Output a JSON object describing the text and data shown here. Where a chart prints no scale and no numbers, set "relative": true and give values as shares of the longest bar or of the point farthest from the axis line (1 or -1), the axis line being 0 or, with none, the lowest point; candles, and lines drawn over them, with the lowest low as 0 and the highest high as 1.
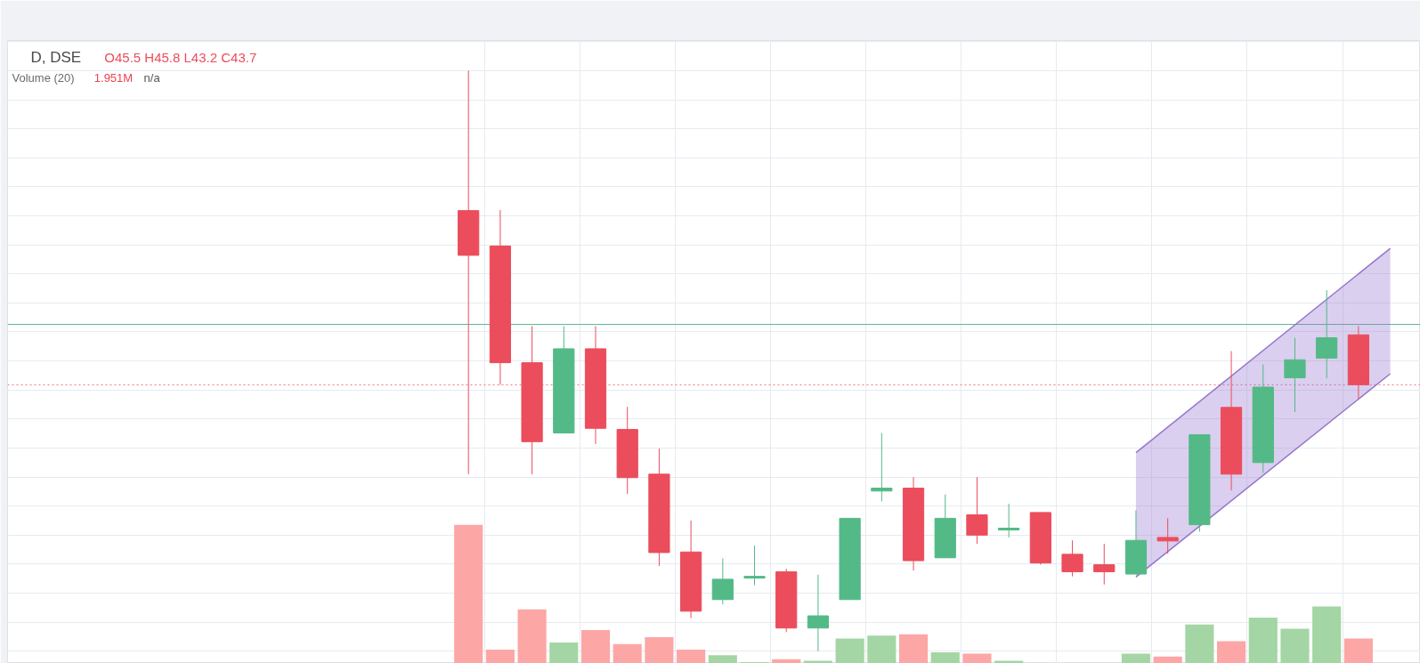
{
  "chart_data": [
    {
      "type": "candlestick",
      "title": "D, DSE",
      "subtitle": "O45.5 H45.8 L43.2 C43.7",
      "annotations": [
        "Volume (20)",
        "1.951M",
        "n/a"
      ],
      "relative": true,
      "grid": true,
      "categories": [
        null,
        null,
        null,
        null,
        null,
        null,
        null,
        null,
        null,
        null,
        null,
        null,
        null,
        null,
        null,
        null,
        null,
        null,
        null,
        null,
        null,
        null,
        null,
        null,
        null,
        null,
        null,
        null,
        null,
        null,
        null,
        null,
        null,
        null,
        null,
        null,
        null,
        null,
        null,
        null,
        null,
        null,
        null,
        null
      ],
      "series": [
        {
          "type": "line",
          "color": "#9575cd",
          "values": [
            null,
            null,
            null,
            null,
            null,
            null,
            null,
            null,
            null,
            null,
            null,
            null,
            null,
            null,
            null,
            null,
            null,
            null,
            null,
            null,
            null,
            null,
            null,
            null,
            null,
            null,
            null,
            null,
            null,
            null,
            null,
            null,
            null,
            null,
            null,
            0.342,
            null,
            null,
            null,
            null,
            null,
            null,
            null,
            0.694
          ],
          "lower": [
            null,
            null,
            null,
            null,
            null,
            null,
            null,
            null,
            null,
            null,
            null,
            null,
            null,
            null,
            null,
            null,
            null,
            null,
            null,
            null,
            null,
            null,
            null,
            null,
            null,
            null,
            null,
            null,
            null,
            null,
            null,
            null,
            null,
            null,
            null,
            0.128,
            null,
            null,
            null,
            null,
            null,
            null,
            null,
            0.478
          ],
          "upper": [
            null,
            null,
            null,
            null,
            null,
            null,
            null,
            null,
            null,
            null,
            null,
            null,
            null,
            null,
            null,
            null,
            null,
            null,
            null,
            null,
            null,
            null,
            null,
            null,
            null,
            null,
            null,
            null,
            null,
            null,
            null,
            null,
            null,
            null,
            null,
            0.342,
            null,
            null,
            null,
            null,
            null,
            null,
            null,
            0.694
          ]
        },
        {
          "type": "line",
          "color": "#9575cd",
          "values": [
            null,
            null,
            null,
            null,
            null,
            null,
            null,
            null,
            null,
            null,
            null,
            null,
            null,
            null,
            null,
            null,
            null,
            null,
            null,
            null,
            null,
            null,
            null,
            null,
            null,
            null,
            null,
            null,
            null,
            null,
            null,
            null,
            null,
            null,
            null,
            0.128,
            null,
            null,
            null,
            null,
            null,
            null,
            null,
            0.478
          ]
        },
        {
          "ohlc": [
            null,
            null,
            null,
            null,
            null,
            null,
            null,
            null,
            null,
            null,
            null,
            null,
            null,
            null,
            [
              0.759,
              1.0,
              0.305,
              0.682
            ],
            [
              0.698,
              0.76,
              0.459,
              0.497
            ],
            [
              0.497,
              0.56,
              0.305,
              0.361
            ],
            [
              0.376,
              0.56,
              0.376,
              0.521
            ],
            [
              0.521,
              0.56,
              0.357,
              0.384
            ],
            [
              0.382,
              0.421,
              0.271,
              0.299
            ],
            [
              0.305,
              0.349,
              0.147,
              0.17
            ],
            [
              0.171,
              0.225,
              0.057,
              0.069
            ],
            [
              0.089,
              0.16,
              0.081,
              0.124
            ],
            [
              0.126,
              0.182,
              0.114,
              0.129
            ],
            [
              0.137,
              0.142,
              0.033,
              0.04
            ],
            [
              0.04,
              0.132,
              0.0,
              0.061
            ],
            [
              0.089,
              0.229,
              0.089,
              0.229
            ],
            [
              0.276,
              0.376,
              0.258,
              0.281
            ],
            [
              0.281,
              0.3,
              0.139,
              0.156
            ],
            [
              0.161,
              0.27,
              0.161,
              0.229
            ],
            [
              0.235,
              0.3,
              0.185,
              0.2
            ],
            [
              0.209,
              0.254,
              0.196,
              0.212
            ],
            [
              0.239,
              0.239,
              0.149,
              0.152
            ],
            [
              0.167,
              0.191,
              0.129,
              0.137
            ],
            [
              0.149,
              0.185,
              0.115,
              0.137
            ],
            [
              0.133,
              0.243,
              0.133,
              0.191
            ],
            [
              0.196,
              0.229,
              0.168,
              0.19
            ],
            [
              0.218,
              0.373,
              0.206,
              0.373
            ],
            [
              0.42,
              0.517,
              0.277,
              0.305
            ],
            [
              0.325,
              0.494,
              0.307,
              0.455
            ],
            [
              0.471,
              0.54,
              0.412,
              0.502
            ],
            [
              0.505,
              0.622,
              0.47,
              0.54
            ],
            [
              0.545,
              0.56,
              0.435,
              0.459
            ],
            null
          ],
          "colors": [
            null,
            null,
            null,
            null,
            null,
            null,
            null,
            null,
            null,
            null,
            null,
            null,
            null,
            null,
            "#eb4d5c",
            "#eb4d5c",
            "#eb4d5c",
            "#53b987",
            "#eb4d5c",
            "#eb4d5c",
            "#eb4d5c",
            "#eb4d5c",
            "#53b987",
            "#53b987",
            "#eb4d5c",
            "#53b987",
            "#53b987",
            "#53b987",
            "#eb4d5c",
            "#53b987",
            "#eb4d5c",
            "#53b987",
            "#eb4d5c",
            "#eb4d5c",
            "#eb4d5c",
            "#53b987",
            "#eb4d5c",
            "#53b987",
            "#eb4d5c",
            "#53b987",
            "#53b987",
            "#53b987",
            "#eb4d5c",
            null
          ]
        }
      ],
      "ref_lines": [
        {
          "axis": "y",
          "value": 0.563,
          "color": "#5fb79a",
          "line_style": "solid"
        },
        {
          "axis": "y",
          "value": 0.459,
          "color": "#f07178",
          "line_style": "dotted"
        }
      ]
    },
    {
      "type": "bar",
      "relative": true,
      "categories": [
        null,
        null,
        null,
        null,
        null,
        null,
        null,
        null,
        null,
        null,
        null,
        null,
        null,
        null,
        null,
        null,
        null,
        null,
        null,
        null,
        null,
        null,
        null,
        null,
        null,
        null,
        null,
        null,
        null,
        null,
        null,
        null,
        null,
        null,
        null,
        null,
        null,
        null,
        null,
        null,
        null,
        null,
        null,
        null
      ],
      "values": [
        null,
        null,
        null,
        null,
        null,
        null,
        null,
        null,
        null,
        null,
        null,
        null,
        null,
        null,
        1.0,
        0.1,
        0.39,
        0.15,
        0.24,
        0.14,
        0.19,
        0.1,
        0.06,
        0.01,
        0.03,
        0.02,
        0.18,
        0.2,
        0.21,
        0.08,
        0.07,
        0.02,
        null,
        null,
        null,
        0.07,
        0.05,
        0.28,
        0.16,
        0.33,
        0.25,
        0.41,
        0.18,
        null
      ],
      "colors": [
        null,
        null,
        null,
        null,
        null,
        null,
        null,
        null,
        null,
        null,
        null,
        null,
        null,
        null,
        "#fca6a6",
        "#fca6a6",
        "#fca6a6",
        "#a4d5a4",
        "#fca6a6",
        "#fca6a6",
        "#fca6a6",
        "#fca6a6",
        "#a4d5a4",
        "#a4d5a4",
        "#fca6a6",
        "#a4d5a4",
        "#a4d5a4",
        "#a4d5a4",
        "#fca6a6",
        "#a4d5a4",
        "#fca6a6",
        "#a4d5a4",
        null,
        null,
        null,
        "#a4d5a4",
        "#fca6a6",
        "#a4d5a4",
        "#fca6a6",
        "#a4d5a4",
        "#a4d5a4",
        "#a4d5a4",
        "#fca6a6",
        null
      ]
    }
  ]
}
